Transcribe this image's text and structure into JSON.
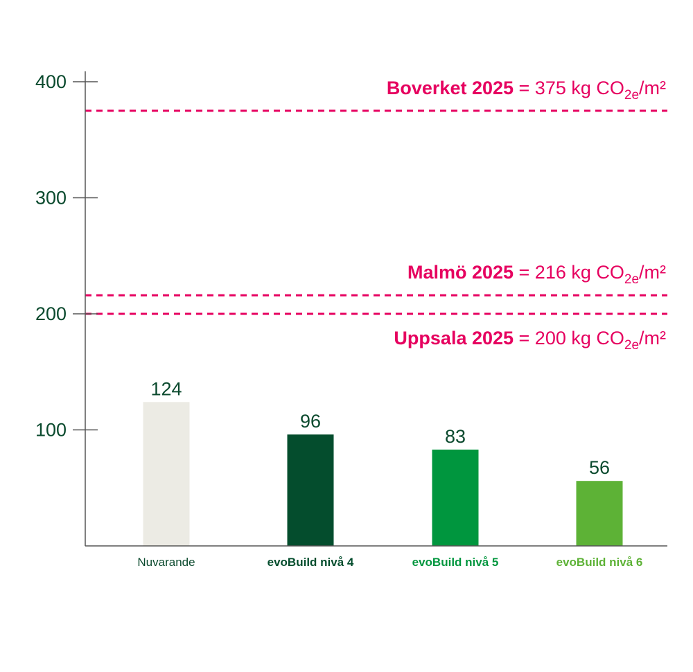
{
  "chart_data": {
    "type": "bar",
    "categories": [
      "Nuvarande",
      "evoBuild nivå 4",
      "evoBuild nivå 5",
      "evoBuild nivå 6"
    ],
    "values": [
      124,
      96,
      83,
      56
    ],
    "value_labels": [
      "124",
      "96",
      "83",
      "56"
    ],
    "bar_colors": [
      "#ecebe4",
      "#044d2d",
      "#00963e",
      "#5db236"
    ],
    "category_label_colors": [
      "#0b4a2e",
      "#044d2d",
      "#00963e",
      "#5db236"
    ],
    "category_label_bold": [
      false,
      true,
      true,
      true
    ],
    "y_ticks": [
      100,
      200,
      300,
      400
    ],
    "y_tick_labels": [
      "100",
      "200",
      "300",
      "400"
    ],
    "ylim": [
      0,
      410
    ],
    "title": "",
    "xlabel": "",
    "ylabel": "",
    "grid": false,
    "reference_lines": [
      {
        "value": 375,
        "name": "Boverket 2025",
        "text": "= 375 kg CO",
        "sub": "2e",
        "unit": "/m²",
        "label_position": "above"
      },
      {
        "value": 216,
        "name": "Malmö 2025",
        "text": "= 216 kg CO",
        "sub": "2e",
        "unit": "/m²",
        "label_position": "above"
      },
      {
        "value": 200,
        "name": "Uppsala 2025",
        "text": "= 200 kg CO",
        "sub": "2e",
        "unit": "/m²",
        "label_position": "below"
      }
    ],
    "colors": {
      "axis": "#555555",
      "reference": "#e6005f",
      "value_text": "#0b4a2e",
      "tick_text": "#0b4a2e"
    }
  }
}
